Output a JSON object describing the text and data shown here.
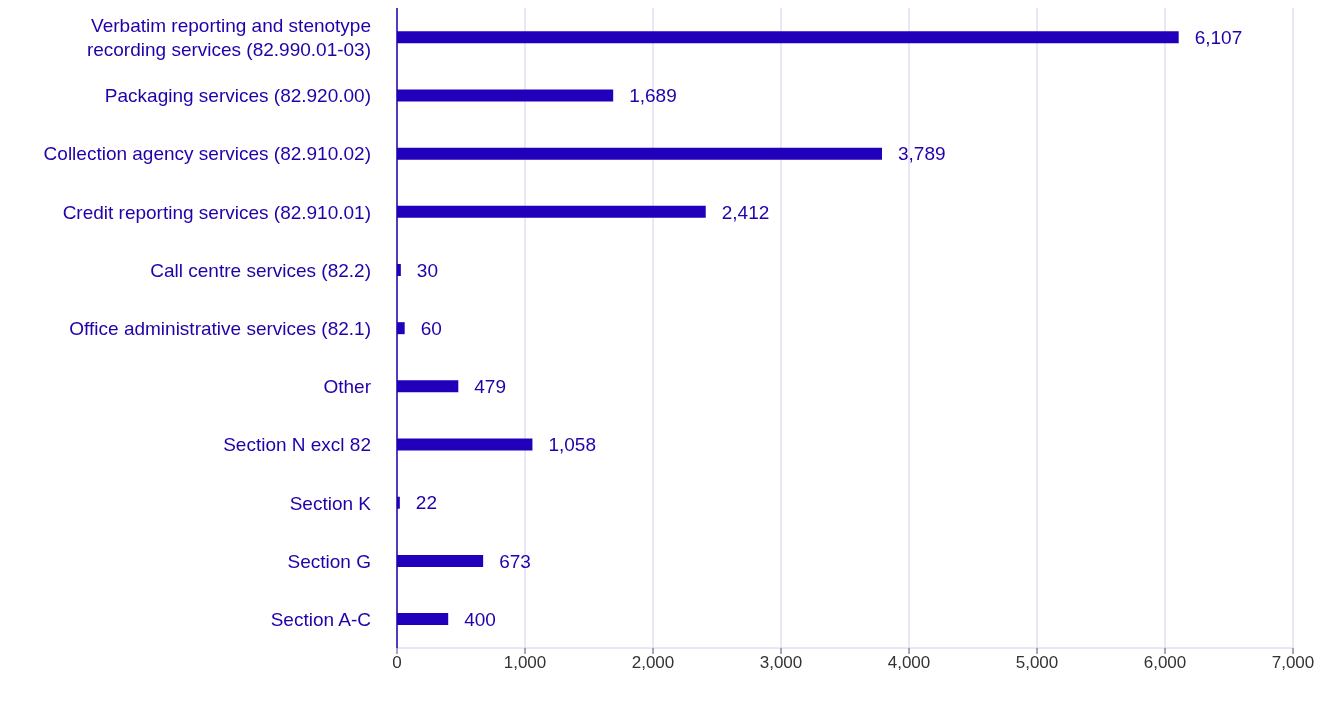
{
  "chart_data": {
    "type": "bar",
    "orientation": "horizontal",
    "categories": [
      "Verbatim reporting and stenotype recording services (82.990.01-03)",
      "Packaging services (82.920.00)",
      "Collection agency services (82.910.02)",
      "Credit reporting services (82.910.01)",
      "Call centre services (82.2)",
      "Office administrative services (82.1)",
      "Other",
      "Section N excl 82",
      "Section K",
      "Section G",
      "Section A-C"
    ],
    "values": [
      6107,
      1689,
      3789,
      2412,
      30,
      60,
      479,
      1058,
      22,
      673,
      400
    ],
    "value_labels": [
      "6,107",
      "1,689",
      "3,789",
      "2,412",
      "30",
      "60",
      "479",
      "1,058",
      "22",
      "673",
      "400"
    ],
    "color": "#2200bb",
    "xlim": [
      0,
      7000
    ],
    "xticks": [
      {
        "value": 0,
        "label": "0"
      },
      {
        "value": 1000,
        "label": "1,000"
      },
      {
        "value": 2000,
        "label": "2,000"
      },
      {
        "value": 3000,
        "label": "3,000"
      },
      {
        "value": 4000,
        "label": "4,000"
      },
      {
        "value": 5000,
        "label": "5,000"
      },
      {
        "value": 6000,
        "label": "6,000"
      },
      {
        "value": 7000,
        "label": "7,000"
      }
    ],
    "grid": "x",
    "legend": false
  }
}
